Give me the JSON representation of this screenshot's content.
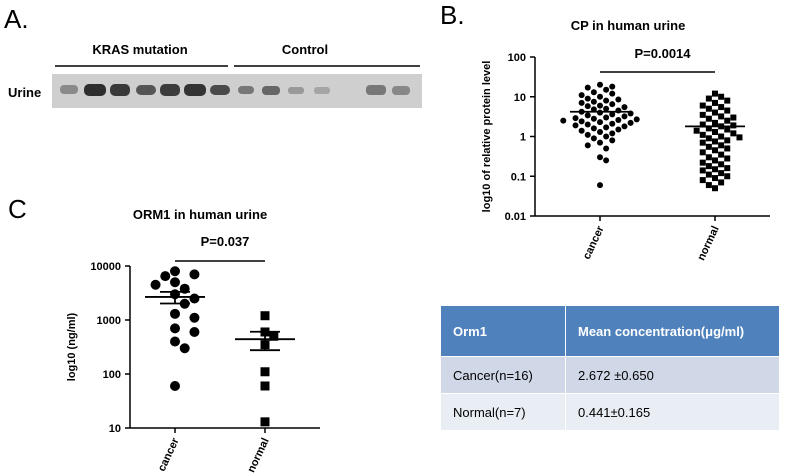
{
  "panel_labels": [
    "A.",
    "B.",
    "C"
  ],
  "blot": {
    "group_labels": [
      "KRAS mutation",
      "Control"
    ],
    "row_label": "Urine"
  },
  "chart_data": [
    {
      "type": "dotplot",
      "title": "CP in human urine",
      "y_label": "log10 of relative protein level",
      "annotation": "P=0.0014",
      "categories": [
        "cancer",
        "normal"
      ],
      "markers": [
        "circle",
        "square"
      ],
      "color": "#000000",
      "log_scale": true,
      "ylim": [
        0.01,
        100
      ],
      "yticks": [
        0.01,
        0.1,
        1,
        10,
        100
      ],
      "values": [
        [
          20,
          18,
          17,
          15,
          13,
          12,
          11,
          10,
          9,
          8.5,
          8,
          7.5,
          7,
          6.5,
          6,
          5.8,
          5.5,
          5,
          4.8,
          4.5,
          4.2,
          4,
          3.8,
          3.6,
          3.4,
          3.2,
          3,
          2.9,
          2.8,
          2.7,
          2.6,
          2.5,
          2.4,
          2.3,
          2.2,
          2.1,
          2,
          1.9,
          1.8,
          1.7,
          1.6,
          1.5,
          1.4,
          1.3,
          1.2,
          1.1,
          1,
          0.9,
          0.8,
          0.7,
          0.6,
          0.5,
          0.3,
          0.25,
          0.06
        ],
        [
          12,
          10,
          9,
          8,
          7,
          6,
          5.5,
          5,
          4.5,
          4,
          3.5,
          3.2,
          3,
          2.8,
          2.5,
          2.2,
          2,
          1.9,
          1.8,
          1.6,
          1.5,
          1.4,
          1.3,
          1.2,
          1.1,
          1,
          0.95,
          0.9,
          0.8,
          0.75,
          0.7,
          0.6,
          0.55,
          0.5,
          0.45,
          0.4,
          0.35,
          0.3,
          0.28,
          0.25,
          0.22,
          0.2,
          0.18,
          0.16,
          0.15,
          0.14,
          0.12,
          0.11,
          0.1,
          0.09,
          0.08,
          0.07,
          0.06,
          0.05
        ]
      ],
      "means": [
        4.2,
        1.8
      ]
    },
    {
      "type": "dotplot",
      "title": "ORM1 in human urine",
      "y_label": "log10 (ng/ml)",
      "annotation": "P=0.037",
      "categories": [
        "cancer",
        "normal"
      ],
      "markers": [
        "circle",
        "square"
      ],
      "color": "#000000",
      "log_scale": true,
      "ylim": [
        10,
        10000
      ],
      "yticks": [
        10,
        100,
        1000,
        10000
      ],
      "values": [
        [
          8000,
          7000,
          6500,
          5000,
          4500,
          3800,
          3000,
          2500,
          2000,
          1300,
          1100,
          700,
          600,
          400,
          300,
          60
        ],
        [
          1200,
          600,
          500,
          350,
          110,
          60,
          13
        ]
      ],
      "means": [
        2672,
        441
      ],
      "errors": [
        650,
        165
      ]
    }
  ],
  "table": {
    "header": [
      "Orm1",
      "Mean concentration(μg/ml)"
    ],
    "rows": [
      [
        "Cancer(n=16)",
        "2.672 ±0.650"
      ],
      [
        "Normal(n=7)",
        "0.441±0.165"
      ]
    ]
  }
}
